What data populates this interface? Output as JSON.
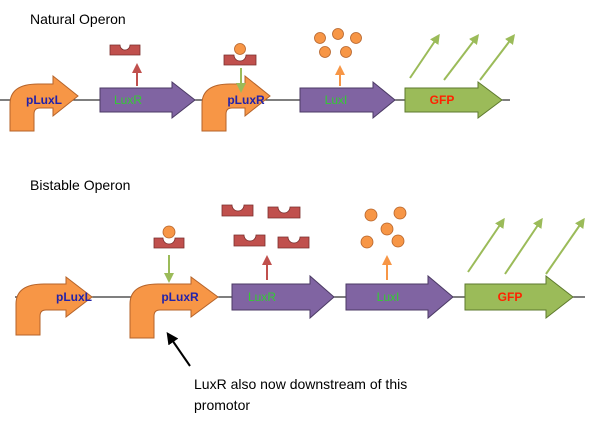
{
  "colors": {
    "promoter": "#F79646",
    "promoter_stroke": "#B5632A",
    "luxr": "#8064A2",
    "luxr_stroke": "#4B3A64",
    "luxi": "#8064A2",
    "gfp": "#9BBB59",
    "gfp_stroke": "#5E7A2E",
    "protein": "#C0504D",
    "protein_stroke": "#7A2E2C",
    "ahl": "#F79646",
    "light_arrow": "#9BBB59",
    "label_blue": "#2222AA",
    "label_green": "#33CC33",
    "label_red": "#FF2200",
    "arrow_red": "#C0504D",
    "arrow_green": "#9BBB59",
    "arrow_orange": "#F79646"
  },
  "natural": {
    "title": "Natural Operon",
    "promoter1_label": "pLuxL",
    "luxr_label": "LuxR",
    "promoter2_label": "pLuxR",
    "luxi_label": "LuxI",
    "gfp_label": "GFP"
  },
  "bistable": {
    "title": "Bistable Operon",
    "promoter1_label": "pLuxL",
    "promoter2_label": "pLuxR",
    "luxr_label": "LuxR",
    "luxi_label": "LuxI",
    "gfp_label": "GFP",
    "note_line1": "LuxR also now downstream of this",
    "note_line2": "promotor"
  }
}
